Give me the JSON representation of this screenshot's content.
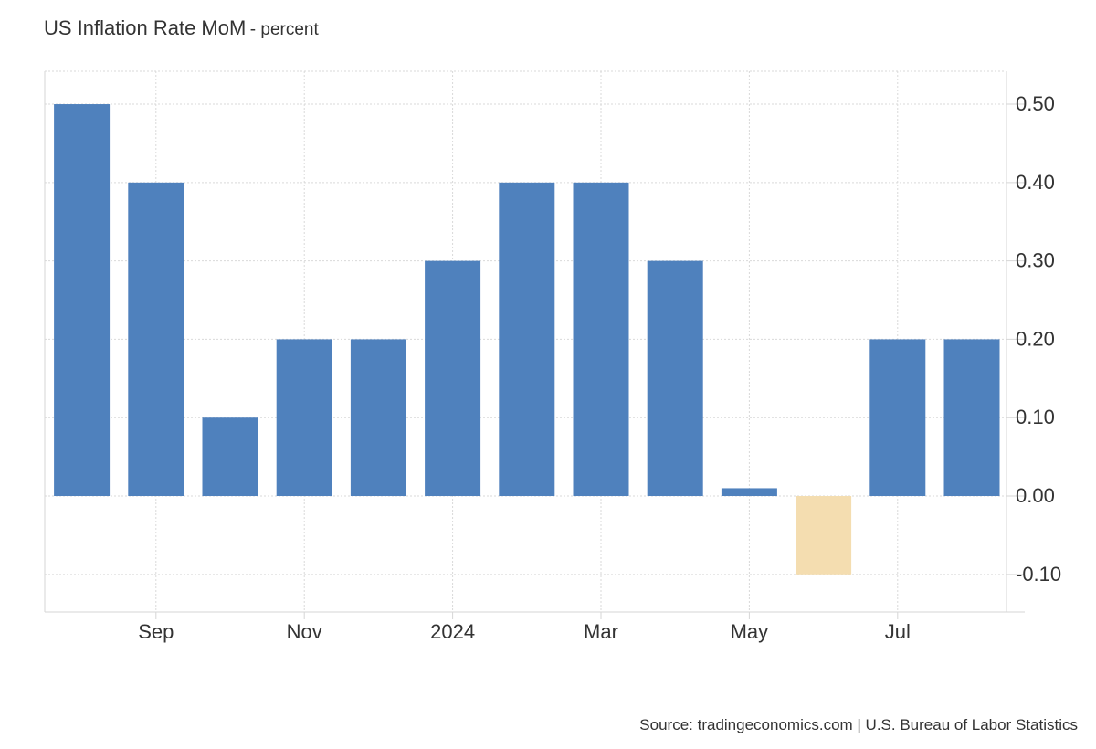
{
  "title": "US Inflation Rate MoM",
  "subtitle": "- percent",
  "source": "Source: tradingeconomics.com | U.S. Bureau of Labor Statistics",
  "colors": {
    "positive": "#4f81bd",
    "negative": "#f4ddb0",
    "grid": "#d9d9d9",
    "axis": "#d6d6d6",
    "text": "#333333"
  },
  "chart_data": {
    "type": "bar",
    "categories": [
      "2023-08",
      "2023-09",
      "2023-10",
      "2023-11",
      "2023-12",
      "2024-01",
      "2024-02",
      "2024-03",
      "2024-04",
      "2024-05",
      "2024-06",
      "2024-07",
      "2024-08"
    ],
    "values": [
      0.5,
      0.4,
      0.1,
      0.2,
      0.2,
      0.3,
      0.4,
      0.4,
      0.3,
      0.01,
      -0.1,
      0.2,
      0.2
    ],
    "x_tick_labels": [
      {
        "category": "2023-09",
        "label": "Sep"
      },
      {
        "category": "2023-11",
        "label": "Nov"
      },
      {
        "category": "2024-01",
        "label": "2024"
      },
      {
        "category": "2024-03",
        "label": "Mar"
      },
      {
        "category": "2024-05",
        "label": "May"
      },
      {
        "category": "2024-07",
        "label": "Jul"
      }
    ],
    "y_ticks": [
      "-0.10",
      "0.00",
      "0.10",
      "0.20",
      "0.30",
      "0.40",
      "0.50"
    ],
    "ylim": [
      -0.148,
      0.542
    ],
    "y_axis_position": "right",
    "grid": true,
    "legend": "none"
  }
}
